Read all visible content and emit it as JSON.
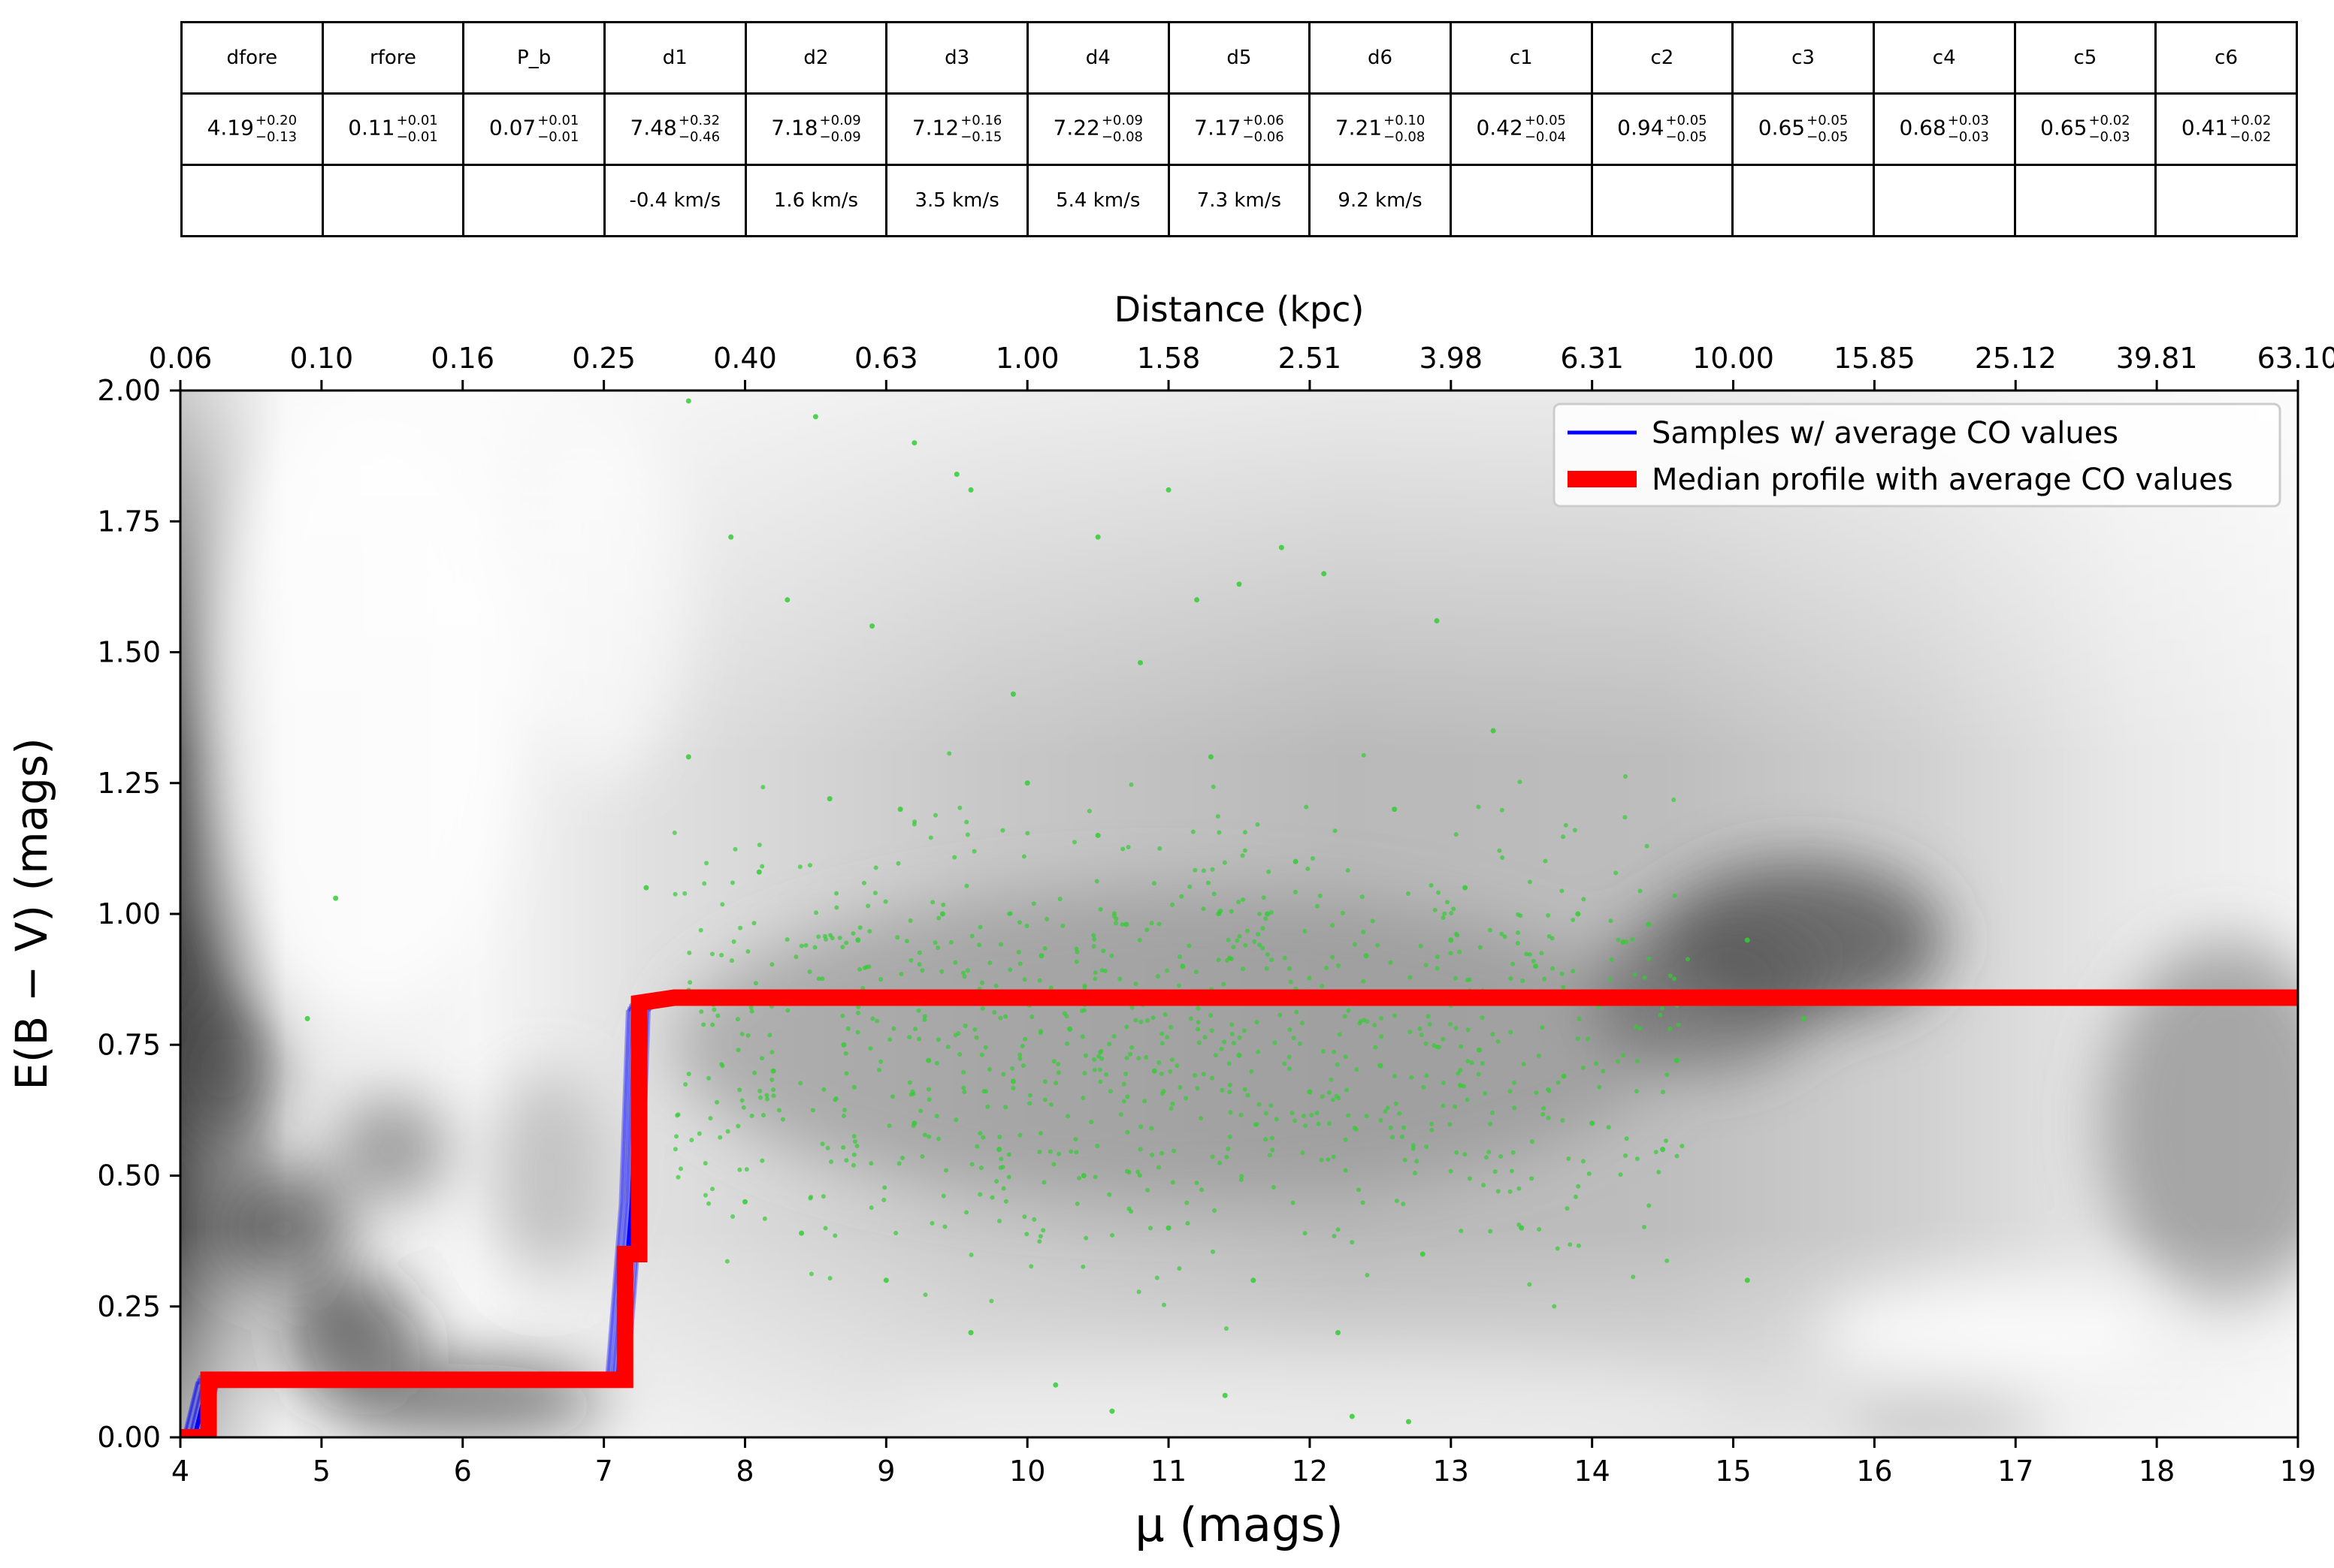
{
  "table": {
    "columns": [
      {
        "name": "dfore",
        "value": "4.19",
        "plus": "+0.20",
        "minus": "−0.13",
        "velocity": ""
      },
      {
        "name": "rfore",
        "value": "0.11",
        "plus": "+0.01",
        "minus": "−0.01",
        "velocity": ""
      },
      {
        "name": "P_b",
        "value": "0.07",
        "plus": "+0.01",
        "minus": "−0.01",
        "velocity": ""
      },
      {
        "name": "d1",
        "value": "7.48",
        "plus": "+0.32",
        "minus": "−0.46",
        "velocity": "-0.4 km/s"
      },
      {
        "name": "d2",
        "value": "7.18",
        "plus": "+0.09",
        "minus": "−0.09",
        "velocity": "1.6 km/s"
      },
      {
        "name": "d3",
        "value": "7.12",
        "plus": "+0.16",
        "minus": "−0.15",
        "velocity": "3.5 km/s"
      },
      {
        "name": "d4",
        "value": "7.22",
        "plus": "+0.09",
        "minus": "−0.08",
        "velocity": "5.4 km/s"
      },
      {
        "name": "d5",
        "value": "7.17",
        "plus": "+0.06",
        "minus": "−0.06",
        "velocity": "7.3 km/s"
      },
      {
        "name": "d6",
        "value": "7.21",
        "plus": "+0.10",
        "minus": "−0.08",
        "velocity": "9.2 km/s"
      },
      {
        "name": "c1",
        "value": "0.42",
        "plus": "+0.05",
        "minus": "−0.04",
        "velocity": ""
      },
      {
        "name": "c2",
        "value": "0.94",
        "plus": "+0.05",
        "minus": "−0.05",
        "velocity": ""
      },
      {
        "name": "c3",
        "value": "0.65",
        "plus": "+0.05",
        "minus": "−0.05",
        "velocity": ""
      },
      {
        "name": "c4",
        "value": "0.68",
        "plus": "+0.03",
        "minus": "−0.03",
        "velocity": ""
      },
      {
        "name": "c5",
        "value": "0.65",
        "plus": "+0.02",
        "minus": "−0.03",
        "velocity": ""
      },
      {
        "name": "c6",
        "value": "0.41",
        "plus": "+0.02",
        "minus": "−0.02",
        "velocity": ""
      }
    ]
  },
  "chart_data": {
    "type": "line",
    "xlabel": "μ (mags)",
    "ylabel": "E(B − V) (mags)",
    "top_xlabel": "Distance (kpc)",
    "xlim": [
      4,
      19
    ],
    "ylim": [
      0,
      2
    ],
    "x_ticks": [
      "4",
      "5",
      "6",
      "7",
      "8",
      "9",
      "10",
      "11",
      "12",
      "13",
      "14",
      "15",
      "16",
      "17",
      "18",
      "19"
    ],
    "y_ticks": [
      "0.00",
      "0.25",
      "0.50",
      "0.75",
      "1.00",
      "1.25",
      "1.50",
      "1.75",
      "2.00"
    ],
    "top_ticks": [
      "0.06",
      "0.10",
      "0.16",
      "0.25",
      "0.40",
      "0.63",
      "1.00",
      "1.58",
      "2.51",
      "3.98",
      "6.31",
      "10.00",
      "15.85",
      "25.12",
      "39.81",
      "63.10"
    ],
    "legend_position": "top-right",
    "grid": false,
    "series": [
      {
        "name": "Samples  w/ average CO values",
        "color": "#0000ff",
        "x": [
          4.1,
          4.2,
          7.1,
          7.2,
          7.25,
          7.3,
          7.5,
          19
        ],
        "y": [
          0,
          0.11,
          0.11,
          0.45,
          0.82,
          0.83,
          0.84,
          0.84
        ]
      },
      {
        "name": "Median profile with average CO values",
        "color": "#ff0000",
        "x": [
          4.0,
          4.2,
          4.2,
          7.15,
          7.15,
          7.25,
          7.25,
          7.5,
          19.0
        ],
        "y": [
          0.0,
          0.0,
          0.11,
          0.11,
          0.35,
          0.35,
          0.83,
          0.84,
          0.84
        ]
      }
    ],
    "scatter": {
      "color": "#33cc33",
      "points": [
        [
          5.1,
          1.03
        ],
        [
          4.9,
          0.8
        ],
        [
          7.6,
          1.98
        ],
        [
          8.5,
          1.95
        ],
        [
          9.2,
          1.9
        ],
        [
          9.5,
          1.84
        ],
        [
          9.6,
          1.81
        ],
        [
          11.0,
          1.81
        ],
        [
          11.8,
          1.7
        ],
        [
          12.1,
          1.65
        ],
        [
          10.5,
          1.72
        ],
        [
          7.9,
          1.72
        ],
        [
          8.3,
          1.6
        ],
        [
          8.9,
          1.55
        ],
        [
          9.9,
          1.42
        ],
        [
          10.8,
          1.48
        ],
        [
          11.2,
          1.6
        ],
        [
          11.5,
          1.63
        ],
        [
          12.9,
          1.56
        ],
        [
          13.3,
          1.35
        ],
        [
          7.3,
          1.05
        ],
        [
          7.6,
          1.3
        ],
        [
          8.1,
          1.08
        ],
        [
          8.6,
          1.22
        ],
        [
          9.1,
          1.2
        ],
        [
          10.0,
          1.25
        ],
        [
          10.5,
          1.15
        ],
        [
          11.3,
          1.3
        ],
        [
          11.9,
          1.1
        ],
        [
          12.6,
          1.2
        ],
        [
          13.1,
          1.05
        ],
        [
          13.9,
          1.0
        ],
        [
          14.4,
          0.98
        ],
        [
          15.1,
          0.95
        ],
        [
          15.1,
          0.3
        ],
        [
          15.5,
          0.8
        ],
        [
          8.0,
          0.45
        ],
        [
          8.4,
          0.39
        ],
        [
          9.0,
          0.3
        ],
        [
          9.6,
          0.2
        ],
        [
          10.2,
          0.1
        ],
        [
          10.6,
          0.05
        ],
        [
          11.4,
          0.08
        ],
        [
          12.3,
          0.04
        ],
        [
          12.7,
          0.03
        ],
        [
          9.2,
          0.6
        ],
        [
          9.8,
          0.55
        ],
        [
          10.4,
          0.5
        ],
        [
          11.0,
          0.4
        ],
        [
          11.6,
          0.3
        ],
        [
          12.2,
          0.2
        ],
        [
          12.8,
          0.35
        ],
        [
          13.5,
          0.4
        ],
        [
          14.0,
          0.6
        ],
        [
          14.5,
          0.55
        ],
        [
          8.8,
          0.95
        ],
        [
          9.4,
          1.0
        ],
        [
          10.1,
          0.92
        ],
        [
          10.7,
          0.98
        ],
        [
          11.1,
          0.9
        ],
        [
          11.7,
          1.0
        ],
        [
          12.4,
          0.92
        ],
        [
          13.0,
          0.95
        ],
        [
          13.6,
          0.9
        ],
        [
          14.2,
          0.85
        ],
        [
          8.2,
          0.7
        ],
        [
          8.7,
          0.75
        ],
        [
          9.3,
          0.72
        ],
        [
          9.9,
          0.68
        ],
        [
          10.3,
          0.78
        ],
        [
          10.9,
          0.7
        ],
        [
          11.5,
          0.73
        ],
        [
          12.0,
          0.66
        ],
        [
          12.5,
          0.71
        ],
        [
          13.2,
          0.74
        ],
        [
          13.8,
          0.69
        ],
        [
          14.6,
          0.72
        ]
      ]
    }
  }
}
